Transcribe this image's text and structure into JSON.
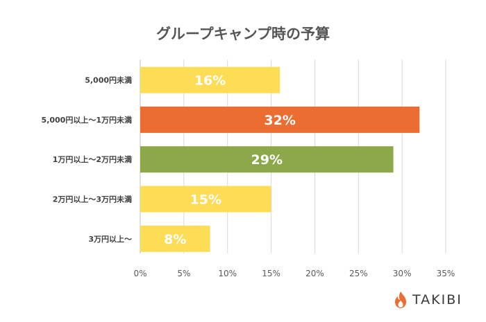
{
  "chart_data": {
    "type": "bar",
    "orientation": "horizontal",
    "title": "グループキャンプ時の予算",
    "categories": [
      "5,000円未満",
      "5,000円以上～1万円未満",
      "1万円以上～2万円未満",
      "2万円以上～3万円未満",
      "3万円以上～"
    ],
    "values": [
      16,
      32,
      29,
      15,
      8
    ],
    "data_labels": [
      "16%",
      "32%",
      "29%",
      "15%",
      "8%"
    ],
    "bar_colors": [
      "#fddc56",
      "#ec6d32",
      "#8ca84a",
      "#fddc56",
      "#fddc56"
    ],
    "xlim": [
      0,
      35
    ],
    "xticks": [
      "0%",
      "5%",
      "10%",
      "15%",
      "20%",
      "25%",
      "30%",
      "35%"
    ],
    "xlabel": "",
    "ylabel": "",
    "grid": true
  },
  "brand": {
    "name": "TAKIBI",
    "icon": "flame-icon",
    "color": "#ec6d32"
  }
}
